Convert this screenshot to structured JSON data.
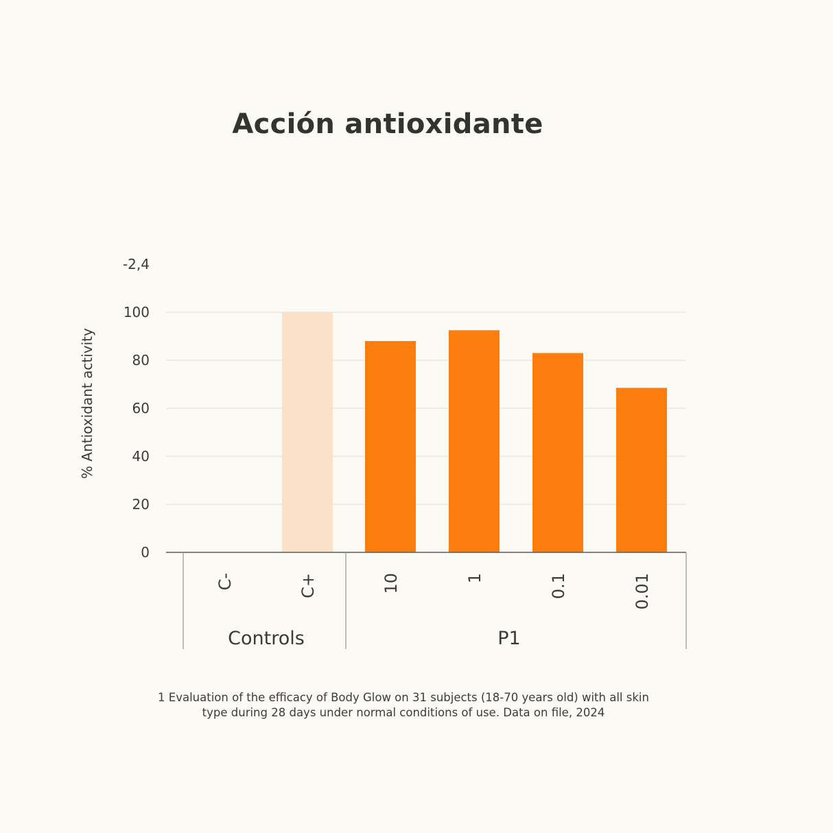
{
  "chart_data": {
    "type": "bar",
    "title": "Acción antioxidante",
    "ylabel": "% Antioxidant activity",
    "xlabel": "",
    "ylim": [
      0,
      100
    ],
    "yticks": [
      0,
      20,
      40,
      60,
      80,
      100
    ],
    "extra_top_label": "-2,4",
    "grid": true,
    "categories": [
      "C-",
      "C+",
      "10",
      "1",
      "0.1",
      "0.01"
    ],
    "values": [
      0,
      100,
      88,
      92.5,
      83,
      68.5
    ],
    "bar_colors": [
      "#fbe1c8",
      "#fbe1c8",
      "#fd7e0f",
      "#fd7e0f",
      "#fd7e0f",
      "#fd7e0f"
    ],
    "groups": [
      {
        "label": "Controls",
        "categories": [
          "C-",
          "C+"
        ]
      },
      {
        "label": "P1",
        "categories": [
          "10",
          "1",
          "0.1",
          "0.01"
        ]
      }
    ]
  },
  "footnote": {
    "line1": "1 Evaluation of the efficacy of Body Glow on 31 subjects (18-70 years old) with all skin",
    "line2": "type during 28 days under normal conditions of use. Data on file, 2024"
  },
  "colors": {
    "background": "#fcfaf5",
    "grid": "#e6e4da",
    "axis": "#5a5a58",
    "text": "#3a3a38"
  }
}
